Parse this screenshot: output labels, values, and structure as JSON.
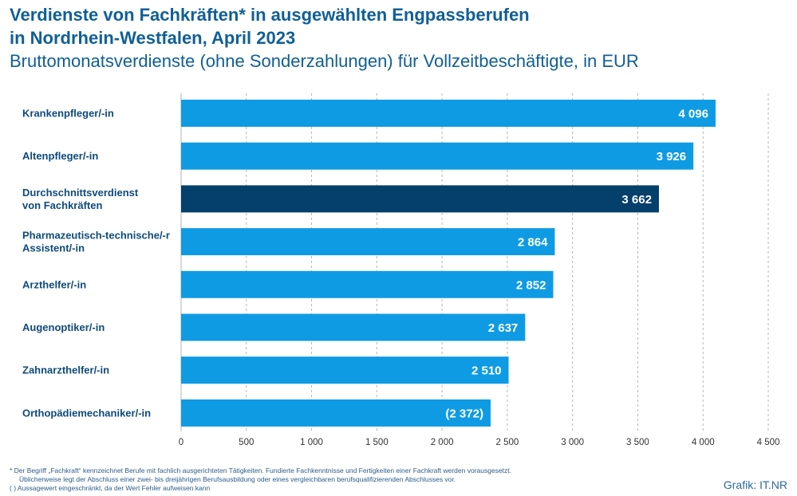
{
  "header": {
    "title_line1": "Verdienste von Fachkräften* in ausgewählten Engpassberufen",
    "title_line2": "in Nordrhein-Westfalen, April 2023",
    "subtitle": "Bruttomonatsverdienste (ohne Sonderzahlungen) für Vollzeitbeschäftigte, in EUR"
  },
  "chart_data": {
    "type": "bar",
    "orientation": "horizontal",
    "categories": [
      [
        "Krankenpfleger/-in"
      ],
      [
        "Altenpfleger/-in"
      ],
      [
        "Durchschnittsverdienst",
        "von Fachkräften"
      ],
      [
        "Pharmazeutisch-technische/-r",
        "Assistent/-in"
      ],
      [
        "Arzthelfer/-in"
      ],
      [
        "Augenoptiker/-in"
      ],
      [
        "Zahnarzthelfer/-in"
      ],
      [
        "Orthopädiemechaniker/-in"
      ]
    ],
    "values": [
      4096,
      3926,
      3662,
      2864,
      2852,
      2637,
      2510,
      2372
    ],
    "value_labels": [
      "4 096",
      "3 926",
      "3 662",
      "2 864",
      "2 852",
      "2 637",
      "2 510",
      "(2 372)"
    ],
    "highlight_index": 2,
    "xlim": [
      0,
      4500
    ],
    "ticks": [
      0,
      500,
      1000,
      1500,
      2000,
      2500,
      3000,
      3500,
      4000,
      4500
    ],
    "tick_labels": [
      "0",
      "500",
      "1 000",
      "1 500",
      "2 000",
      "2 500",
      "3 000",
      "3 500",
      "4 000",
      "4 500"
    ],
    "grid": true,
    "colors": {
      "bar": "#0f9be3",
      "highlight": "#053f6b",
      "grid": "#b5b5b5"
    }
  },
  "footnotes": {
    "line1": "*  Der Begriff „Fachkraft“ kennzeichnet Berufe mit fachlich ausgerichteten Tätigkeiten. Fundierte Fachkenntnisse und Fertigkeiten einer Fachkraft werden vorausgesetzt.",
    "line2": "Üblicherweise legt der Abschluss einer zwei- bis dreijährigen Berufsausbildung oder eines vergleichbaren berufsqualifizierenden Abschlusses vor.",
    "line3": "( ) Aussagewert eingeschränkt, da der Wert Fehler aufweisen kann"
  },
  "source": "Grafik: IT.NR"
}
